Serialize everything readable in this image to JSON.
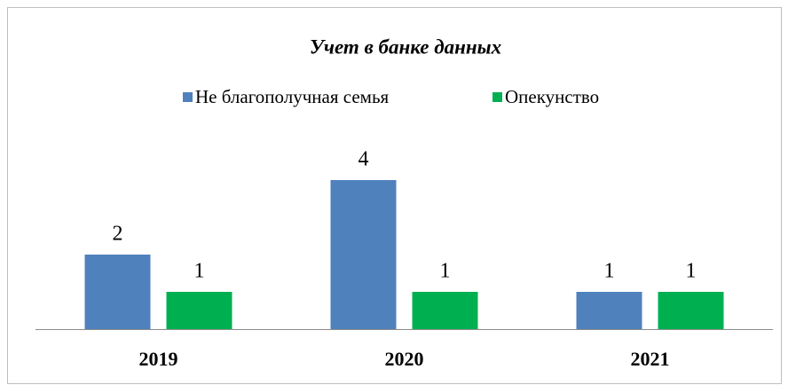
{
  "chart_data": {
    "type": "bar",
    "title": "Учет в банке данных",
    "categories": [
      "2019",
      "2020",
      "2021"
    ],
    "series": [
      {
        "name": "Не благополучная семья",
        "color": "#4f81bd",
        "values": [
          2,
          4,
          1
        ]
      },
      {
        "name": "Опекунство",
        "color": "#00b050",
        "values": [
          1,
          1,
          1
        ]
      }
    ],
    "ylim": [
      0,
      4
    ],
    "legend": "top",
    "data_labels": true
  }
}
